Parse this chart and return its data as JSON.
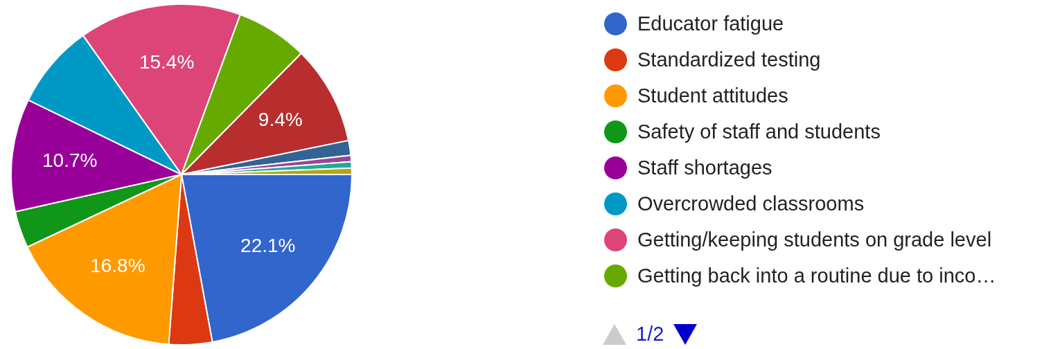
{
  "chart_data": {
    "type": "pie",
    "categories": [
      "Educator fatigue",
      "Standardized testing",
      "Student attitudes",
      "Safety of staff and students",
      "Staff shortages",
      "Overcrowded classrooms",
      "Getting/keeping students on grade level",
      "Getting back into a routine due to inco…",
      null,
      null,
      null,
      null,
      null
    ],
    "values": [
      22.1,
      4.1,
      16.8,
      3.5,
      10.7,
      8.0,
      15.4,
      6.8,
      9.4,
      1.4,
      0.6,
      0.6,
      0.6
    ],
    "value_labels": [
      "22.1%",
      null,
      "16.8%",
      null,
      "10.7%",
      null,
      "15.4%",
      null,
      "9.4%",
      null,
      null,
      null,
      null
    ],
    "colors": [
      "#3366cc",
      "#dc3912",
      "#ff9900",
      "#109618",
      "#990099",
      "#0099c6",
      "#dd4477",
      "#66aa00",
      "#b82e2e",
      "#316395",
      "#994499",
      "#22aa99",
      "#aaaa11"
    ],
    "legend": "right",
    "annotations": [
      "1/2"
    ]
  }
}
